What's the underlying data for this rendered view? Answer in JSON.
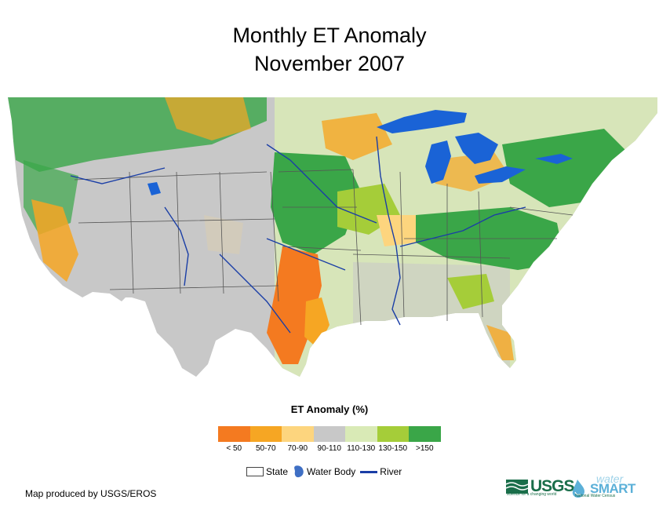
{
  "title": {
    "line1": "Monthly ET Anomaly",
    "line2": "November 2007"
  },
  "legend": {
    "title": "ET Anomaly (%)",
    "classes": [
      {
        "label": "< 50",
        "color": "#f47a20"
      },
      {
        "label": "50-70",
        "color": "#f6a623"
      },
      {
        "label": "70-90",
        "color": "#fdd57e"
      },
      {
        "label": "90-110",
        "color": "#c8c8c8"
      },
      {
        "label": "110-130",
        "color": "#d9eab6"
      },
      {
        "label": "130-150",
        "color": "#a5cd39"
      },
      {
        "label": ">150",
        "color": "#3aa648"
      }
    ],
    "key": {
      "state": "State",
      "water_body": "Water Body",
      "river": "River"
    }
  },
  "credit": "Map produced by USGS/EROS",
  "logos": {
    "usgs": "USGS",
    "usgs_tagline": "science for a changing world",
    "watersmart_top": "water",
    "watersmart_bottom": "SMART",
    "watersmart_tagline": "National Water Census"
  },
  "colors": {
    "water": "#1a63d6",
    "river": "#1a3ea6",
    "state_border": "#555555",
    "background": "#ffffff"
  }
}
